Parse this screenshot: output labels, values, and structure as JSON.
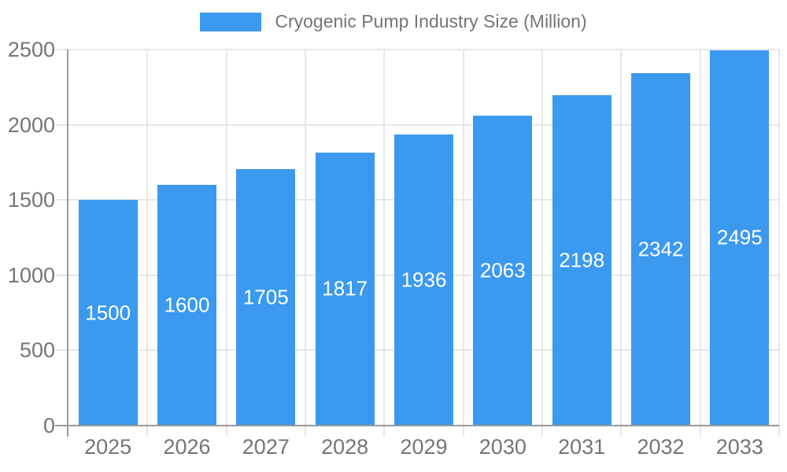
{
  "chart_data": {
    "type": "bar",
    "title": "Cryogenic Pump Industry Size (Million)",
    "legend_position": "top",
    "categories": [
      "2025",
      "2026",
      "2027",
      "2028",
      "2029",
      "2030",
      "2031",
      "2032",
      "2033"
    ],
    "values": [
      1500,
      1600,
      1705,
      1817,
      1936,
      2063,
      2198,
      2342,
      2495
    ],
    "value_labels_shown": true,
    "xlabel": "",
    "ylabel": "",
    "ylim": [
      0,
      2500
    ],
    "yticks": [
      0,
      500,
      1000,
      1500,
      2000,
      2500
    ],
    "grid": true,
    "colors": {
      "bar": "#3B99F0",
      "axis_line": "#9A9A9A",
      "gridline": "#E7E7E7",
      "label_text": "#757575",
      "value_text": "#FFFFFF",
      "background": "#FFFFFF"
    }
  }
}
